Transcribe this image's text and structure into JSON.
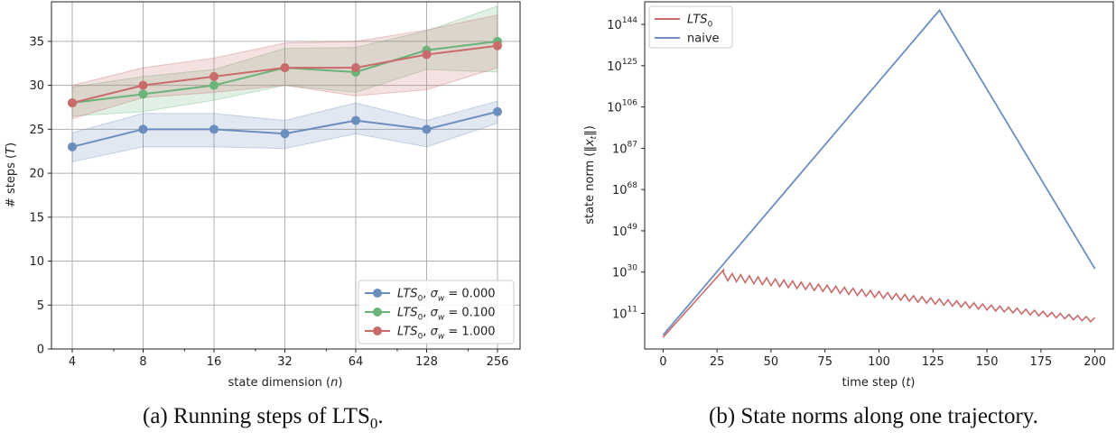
{
  "colors": {
    "blue": "#6c8ebf",
    "green": "#6ab47a",
    "red": "#c96b6b",
    "grid": "#b0b0b0",
    "axis": "#222222"
  },
  "captions": {
    "a": "(a) Running steps of LTS",
    "a_sub": "0",
    "a_end": ".",
    "b": "(b) State norms along one trajectory."
  },
  "chart_data": [
    {
      "type": "line",
      "xscale": "log2",
      "x": [
        4,
        8,
        16,
        32,
        64,
        128,
        256
      ],
      "xticks": [
        "4",
        "8",
        "16",
        "32",
        "64",
        "128",
        "256"
      ],
      "xlabel": "state dimension (n)",
      "ylabel": "# steps (T)",
      "ylim": [
        0,
        39.5
      ],
      "yticks": [
        0,
        5,
        10,
        15,
        20,
        25,
        30,
        35
      ],
      "grid": true,
      "legend_position": "lower-right",
      "series": [
        {
          "name": "LTS0, σw = 0.000",
          "color": "#6c8ebf",
          "values": [
            23,
            25,
            25,
            24.5,
            26,
            25,
            27
          ],
          "band_low": [
            21.3,
            23.0,
            23.0,
            22.8,
            24.5,
            23.0,
            25.7
          ],
          "band_high": [
            24.6,
            26.8,
            26.8,
            26.0,
            28.0,
            26.0,
            28.2
          ]
        },
        {
          "name": "LTS0, σw = 0.100",
          "color": "#6ab47a",
          "values": [
            28,
            29,
            30,
            32,
            31.5,
            34,
            35
          ],
          "band_low": [
            26.5,
            27.0,
            28.3,
            30.0,
            29.2,
            31.8,
            31.5
          ],
          "band_high": [
            29.8,
            31.0,
            31.8,
            34.2,
            34.3,
            36.2,
            39.0
          ]
        },
        {
          "name": "LTS0, σw = 1.000",
          "color": "#c96b6b",
          "values": [
            28,
            30,
            31,
            32,
            32,
            33.5,
            34.5
          ],
          "band_low": [
            26.2,
            28.6,
            29.2,
            30.0,
            28.8,
            29.5,
            32.0
          ],
          "band_high": [
            30.0,
            32.0,
            33.1,
            34.8,
            35.0,
            36.3,
            38.0
          ]
        }
      ]
    },
    {
      "type": "line",
      "yscale": "log",
      "xlabel": "time step (t)",
      "ylabel": "state norm (||xt||)",
      "xlim": [
        -8.5,
        208.5
      ],
      "xticks": [
        0,
        25,
        50,
        75,
        100,
        125,
        150,
        175,
        200
      ],
      "ylim_log10": [
        -5.4,
        154.4
      ],
      "ytick_exponents": [
        11,
        30,
        49,
        68,
        87,
        106,
        125,
        144
      ],
      "grid": false,
      "legend_position": "top-left",
      "series": [
        {
          "name": "LTS0",
          "color": "#c96b6b",
          "log10_start": 0.0,
          "log10_peak": 31.0,
          "peak_t": 28,
          "log10_end": 8.0,
          "zigzag_period": 4,
          "zigzag_amplitude": 3.5
        },
        {
          "name": "naive",
          "color": "#6c8ebf",
          "points_log10": [
            [
              0,
              1.0
            ],
            [
              128,
              150.5
            ],
            [
              200,
              31.5
            ]
          ]
        }
      ]
    }
  ]
}
